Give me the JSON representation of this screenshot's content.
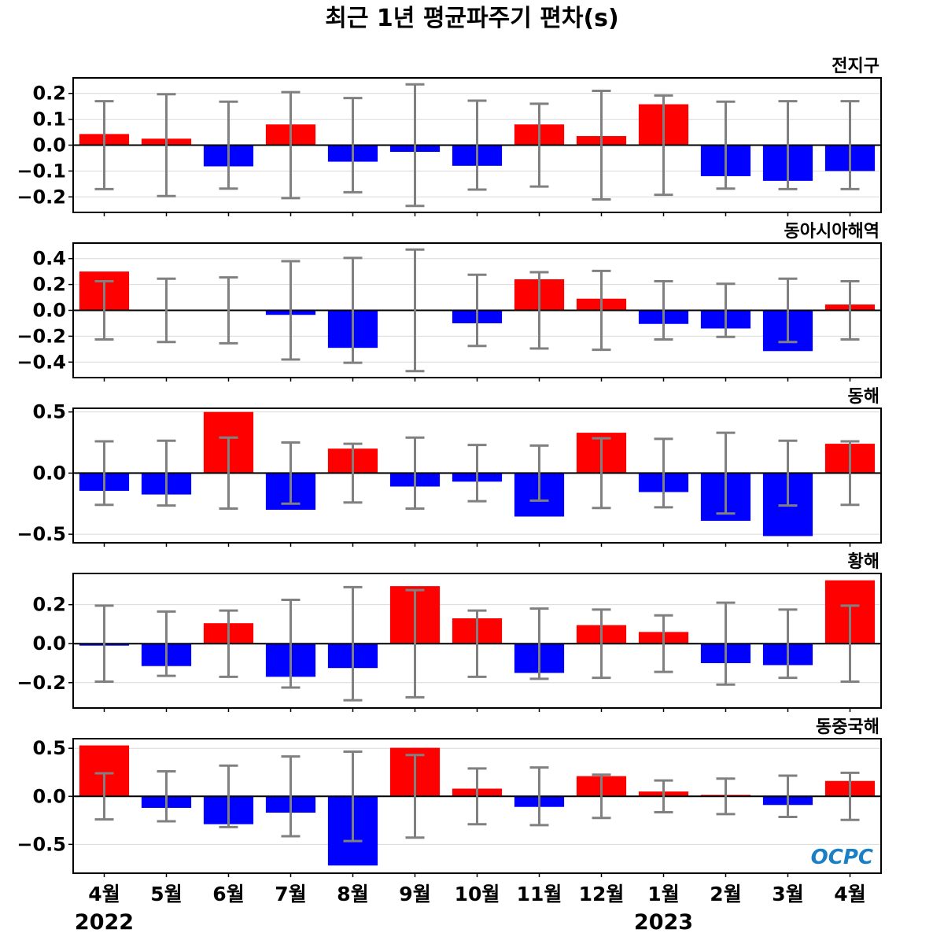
{
  "title": "최근 1년 평균파주기 편차(s)",
  "logo": "OCPC",
  "colors": {
    "positive": "#ff0000",
    "negative": "#0000ff",
    "error_bar": "#808080",
    "grid": "#d9d9d9",
    "zero_line": "#000000",
    "logo": "#1a7fc4"
  },
  "months": [
    "4월",
    "5월",
    "6월",
    "7월",
    "8월",
    "9월",
    "10월",
    "11월",
    "12월",
    "1월",
    "2월",
    "3월",
    "4월"
  ],
  "years": [
    {
      "label": "2022",
      "month_index": 0
    },
    {
      "label": "2023",
      "month_index": 9
    }
  ],
  "chart_data": [
    {
      "type": "bar",
      "label": "전지구",
      "categories": [
        "4월",
        "5월",
        "6월",
        "7월",
        "8월",
        "9월",
        "10월",
        "11월",
        "12월",
        "1월",
        "2월",
        "3월",
        "4월"
      ],
      "values": [
        0.043,
        0.025,
        -0.082,
        0.08,
        -0.064,
        -0.026,
        -0.08,
        0.08,
        0.035,
        0.158,
        -0.12,
        -0.138,
        -0.1
      ],
      "error": [
        0.17,
        0.197,
        0.168,
        0.205,
        0.182,
        0.235,
        0.172,
        0.16,
        0.21,
        0.192,
        0.168,
        0.17,
        0.17
      ],
      "ylim": [
        -0.26,
        0.26
      ],
      "yticks": [
        -0.2,
        -0.1,
        0.0,
        0.1,
        0.2
      ],
      "ytick_labels": [
        "−0.2",
        "−0.1",
        "0.0",
        "0.1",
        "0.2"
      ],
      "grid": true
    },
    {
      "type": "bar",
      "label": "동아시아해역",
      "categories": [
        "4월",
        "5월",
        "6월",
        "7월",
        "8월",
        "9월",
        "10월",
        "11월",
        "12월",
        "1월",
        "2월",
        "3월",
        "4월"
      ],
      "values": [
        0.3,
        0.005,
        0.005,
        -0.035,
        -0.29,
        0.005,
        -0.1,
        0.24,
        0.09,
        -0.105,
        -0.14,
        -0.315,
        0.045
      ],
      "error": [
        0.225,
        0.245,
        0.255,
        0.38,
        0.405,
        0.47,
        0.275,
        0.295,
        0.305,
        0.225,
        0.205,
        0.245,
        0.225
      ],
      "ylim": [
        -0.52,
        0.52
      ],
      "yticks": [
        -0.4,
        -0.2,
        0.0,
        0.2,
        0.4
      ],
      "ytick_labels": [
        "−0.4",
        "−0.2",
        "0.0",
        "0.2",
        "0.4"
      ],
      "grid": true
    },
    {
      "type": "bar",
      "label": "동해",
      "categories": [
        "4월",
        "5월",
        "6월",
        "7월",
        "8월",
        "9월",
        "10월",
        "11월",
        "12월",
        "1월",
        "2월",
        "3월",
        "4월"
      ],
      "values": [
        -0.145,
        -0.175,
        0.5,
        -0.3,
        0.2,
        -0.11,
        -0.07,
        -0.355,
        0.33,
        -0.155,
        -0.39,
        -0.515,
        0.24
      ],
      "error": [
        0.26,
        0.265,
        0.29,
        0.25,
        0.24,
        0.29,
        0.23,
        0.225,
        0.285,
        0.28,
        0.33,
        0.265,
        0.26
      ],
      "ylim": [
        -0.57,
        0.53
      ],
      "yticks": [
        -0.5,
        0.0,
        0.5
      ],
      "ytick_labels": [
        "−0.5",
        "0.0",
        "0.5"
      ],
      "grid": true
    },
    {
      "type": "bar",
      "label": "황해",
      "categories": [
        "4월",
        "5월",
        "6월",
        "7월",
        "8월",
        "9월",
        "10월",
        "11월",
        "12월",
        "1월",
        "2월",
        "3월",
        "4월"
      ],
      "values": [
        -0.01,
        -0.115,
        0.105,
        -0.17,
        -0.125,
        0.295,
        0.13,
        -0.15,
        0.095,
        0.06,
        -0.1,
        -0.11,
        0.325
      ],
      "error": [
        0.195,
        0.165,
        0.17,
        0.225,
        0.29,
        0.275,
        0.17,
        0.18,
        0.175,
        0.145,
        0.21,
        0.175,
        0.195
      ],
      "ylim": [
        -0.33,
        0.36
      ],
      "yticks": [
        -0.2,
        0.0,
        0.2
      ],
      "ytick_labels": [
        "−0.2",
        "0.0",
        "0.2"
      ],
      "grid": true
    },
    {
      "type": "bar",
      "label": "동중국해",
      "categories": [
        "4월",
        "5월",
        "6월",
        "7월",
        "8월",
        "9월",
        "10월",
        "11월",
        "12월",
        "1월",
        "2월",
        "3월",
        "4월"
      ],
      "values": [
        0.53,
        -0.12,
        -0.29,
        -0.17,
        -0.72,
        0.505,
        0.08,
        -0.11,
        0.21,
        0.05,
        0.015,
        -0.09,
        0.16
      ],
      "error": [
        0.24,
        0.26,
        0.32,
        0.415,
        0.465,
        0.43,
        0.29,
        0.3,
        0.225,
        0.165,
        0.185,
        0.215,
        0.245
      ],
      "ylim": [
        -0.8,
        0.6
      ],
      "yticks": [
        -0.5,
        0.0,
        0.5
      ],
      "ytick_labels": [
        "−0.5",
        "0.0",
        "0.5"
      ],
      "grid": true
    }
  ]
}
